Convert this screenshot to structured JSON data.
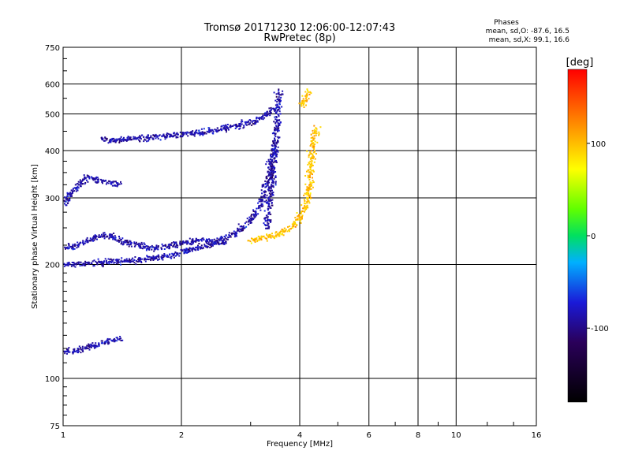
{
  "chart_data": {
    "type": "scatter",
    "title": "Tromsø 20171230 12:06:00-12:07:43",
    "subtitle": "RwPretec (8p)",
    "xlabel": "Frequency [MHz]",
    "ylabel": "Stationary phase Virtual Height [km]",
    "x_scale": "log",
    "y_scale": "log",
    "xlim": [
      1,
      16
    ],
    "ylim": [
      75,
      750
    ],
    "x_ticks": [
      1,
      2,
      4,
      6,
      8,
      10,
      16
    ],
    "x_tick_labels": [
      "1",
      "2",
      "4",
      "6",
      "8",
      "10",
      "16"
    ],
    "y_ticks": [
      75,
      100,
      200,
      300,
      400,
      500,
      600,
      750
    ],
    "y_tick_labels": [
      "75",
      "100",
      "200",
      "300",
      "400",
      "500",
      "600",
      "750"
    ],
    "grid": true,
    "legend": {
      "title": "Phases",
      "line1": "mean, sd,O: -87.6, 16.5",
      "line2": "mean, sd,X:  99.1, 16.6",
      "placement": "top-right"
    },
    "colorbar": {
      "label": "[deg]",
      "range": [
        -180,
        180
      ],
      "ticks": [
        100,
        0,
        -100
      ],
      "tick_labels": [
        "100",
        "0",
        "-100"
      ],
      "colormap": "rainbow"
    },
    "series": [
      {
        "mode": "O",
        "phase_mean": -87.6,
        "phase_sd": 16.5,
        "traces": [
          {
            "x": [
              1.0,
              1.05,
              1.1,
              1.2,
              1.35,
              1.5,
              1.7,
              1.9,
              2.1,
              2.4,
              2.7,
              3.0,
              3.2,
              3.35,
              3.45
            ],
            "y": [
              200,
              200,
              201,
              202,
              204,
              205,
              208,
              212,
              218,
              226,
              240,
              260,
              290,
              350,
              420
            ]
          },
          {
            "x": [
              3.3,
              3.35,
              3.4,
              3.45,
              3.5,
              3.52,
              3.55
            ],
            "y": [
              250,
              290,
              340,
              400,
              460,
              520,
              580
            ]
          },
          {
            "x": [
              1.25,
              1.35,
              1.5,
              1.7,
              1.85,
              2.0,
              2.2,
              2.5,
              2.8,
              3.1,
              3.3,
              3.45
            ],
            "y": [
              430,
              425,
              430,
              435,
              438,
              440,
              445,
              455,
              465,
              480,
              500,
              520
            ]
          },
          {
            "x": [
              1.0,
              1.05,
              1.1,
              1.15,
              1.2,
              1.3,
              1.4
            ],
            "y": [
              285,
              310,
              325,
              340,
              335,
              330,
              325
            ]
          },
          {
            "x": [
              1.0,
              1.1,
              1.2,
              1.3,
              1.4,
              1.55,
              1.7,
              1.9,
              2.1,
              2.3,
              2.6
            ],
            "y": [
              220,
              225,
              235,
              240,
              230,
              225,
              220,
              225,
              230,
              232,
              228
            ]
          },
          {
            "x": [
              1.0,
              1.05,
              1.1,
              1.15,
              1.2,
              1.25,
              1.3,
              1.35,
              1.4
            ],
            "y": [
              118,
              118,
              119,
              121,
              122,
              124,
              125,
              126,
              127
            ]
          }
        ]
      },
      {
        "mode": "X",
        "phase_mean": 99.1,
        "phase_sd": 16.6,
        "traces": [
          {
            "x": [
              3.0,
              3.2,
              3.5,
              3.7,
              3.9,
              4.0,
              4.1,
              4.2,
              4.25,
              4.3,
              4.35,
              4.4
            ],
            "y": [
              230,
              235,
              240,
              245,
              255,
              265,
              280,
              300,
              340,
              390,
              430,
              460
            ]
          },
          {
            "x": [
              4.05,
              4.1,
              4.15,
              4.2
            ],
            "y": [
              520,
              545,
              560,
              575
            ]
          }
        ]
      }
    ]
  }
}
